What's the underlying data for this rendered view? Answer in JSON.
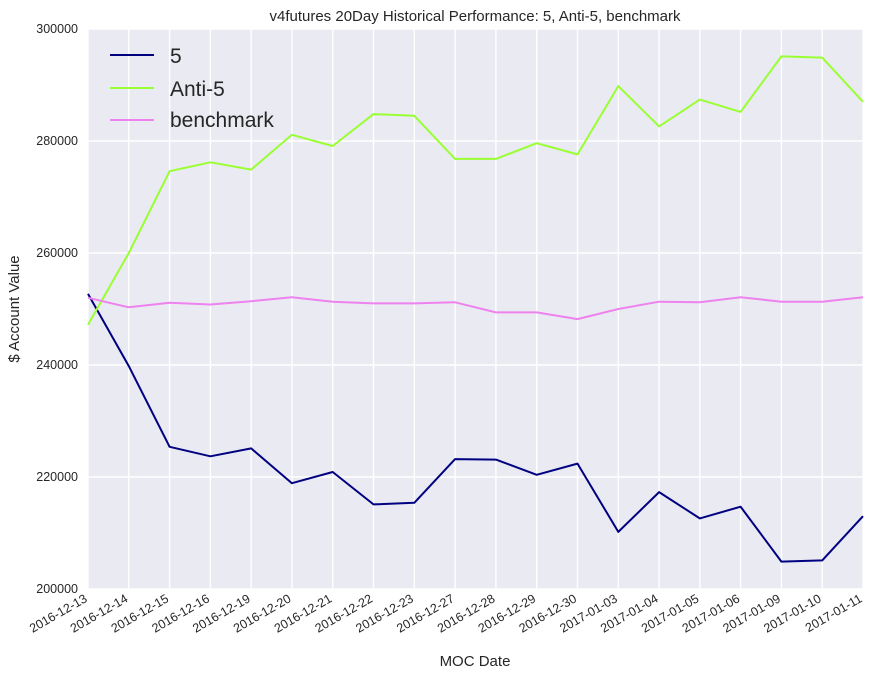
{
  "chart_data": {
    "type": "line",
    "title": "v4futures 20Day Historical Performance: 5, Anti-5, benchmark",
    "xlabel": "MOC Date",
    "ylabel": "$ Account Value",
    "x": [
      "2016-12-13",
      "2016-12-14",
      "2016-12-15",
      "2016-12-16",
      "2016-12-19",
      "2016-12-20",
      "2016-12-21",
      "2016-12-22",
      "2016-12-23",
      "2016-12-27",
      "2016-12-28",
      "2016-12-29",
      "2016-12-30",
      "2017-01-03",
      "2017-01-04",
      "2017-01-05",
      "2017-01-06",
      "2017-01-09",
      "2017-01-10",
      "2017-01-11"
    ],
    "ylim": [
      200000,
      300000
    ],
    "yticks": [
      "200000",
      "220000",
      "240000",
      "260000",
      "280000",
      "300000"
    ],
    "grid": true,
    "legend_position": "upper-left",
    "series": [
      {
        "name": "5",
        "color": "#000080",
        "values": [
          252700,
          239800,
          225400,
          223700,
          225100,
          218900,
          220900,
          215100,
          215400,
          223200,
          223100,
          220400,
          222400,
          210200,
          217300,
          212600,
          214700,
          204900,
          205100,
          213000
        ]
      },
      {
        "name": "Anti-5",
        "color": "#99ff33",
        "values": [
          247200,
          260000,
          274600,
          276200,
          274900,
          281100,
          279100,
          284800,
          284500,
          276800,
          276800,
          279600,
          277600,
          289800,
          282600,
          287400,
          285200,
          295100,
          294900,
          287000
        ]
      },
      {
        "name": "benchmark",
        "color": "#ee82ee",
        "values": [
          252000,
          250300,
          251100,
          250800,
          251400,
          252100,
          251300,
          251000,
          251000,
          251200,
          249400,
          249400,
          248200,
          250000,
          251300,
          251200,
          252100,
          251300,
          251300,
          252100
        ]
      }
    ]
  }
}
